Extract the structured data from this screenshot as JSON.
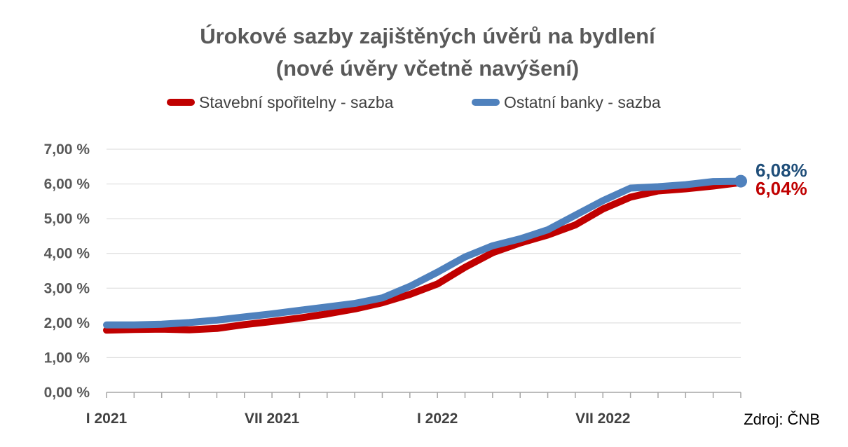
{
  "chart_data": {
    "type": "line",
    "title_line1": "Úrokové sazby zajištěných úvěrů na bydlení",
    "title_line2": "(nové úvěry včetně navýšení)",
    "legend_position": "top",
    "ylim": [
      0,
      7
    ],
    "yticks": [
      "0,00 %",
      "1,00 %",
      "2,00 %",
      "3,00 %",
      "4,00 %",
      "5,00 %",
      "6,00 %",
      "7,00 %"
    ],
    "grid": "horizontal",
    "x": [
      "I 2021",
      "II 2021",
      "III 2021",
      "IV 2021",
      "V 2021",
      "VI 2021",
      "VII 2021",
      "VIII 2021",
      "IX 2021",
      "X 2021",
      "XI 2021",
      "XII 2021",
      "I 2022",
      "II 2022",
      "III 2022",
      "IV 2022",
      "V 2022",
      "VI 2022",
      "VII 2022",
      "VIII 2022",
      "IX 2022",
      "X 2022",
      "XI 2022",
      "XII 2022"
    ],
    "xtick_labels": [
      {
        "index": 0,
        "label": "I 2021"
      },
      {
        "index": 6,
        "label": "VII 2021"
      },
      {
        "index": 12,
        "label": "I 2022"
      },
      {
        "index": 18,
        "label": "VII 2022"
      }
    ],
    "series": [
      {
        "name": "Stavební spořitelny - sazba",
        "color": "#c00000",
        "values": [
          1.79,
          1.81,
          1.82,
          1.8,
          1.84,
          1.95,
          2.04,
          2.14,
          2.26,
          2.4,
          2.58,
          2.82,
          3.12,
          3.6,
          4.02,
          4.3,
          4.53,
          4.82,
          5.28,
          5.62,
          5.8,
          5.86,
          5.94,
          6.04
        ],
        "end_label": "6,04%"
      },
      {
        "name": "Ostatní banky - sazba",
        "color": "#4f81bd",
        "values": [
          1.94,
          1.94,
          1.96,
          2.01,
          2.08,
          2.17,
          2.26,
          2.36,
          2.46,
          2.56,
          2.72,
          3.05,
          3.46,
          3.9,
          4.22,
          4.42,
          4.68,
          5.1,
          5.52,
          5.88,
          5.92,
          5.98,
          6.07,
          6.08
        ],
        "end_label": "6,08%",
        "end_label_color": "#1f4e79"
      }
    ]
  },
  "source": "Zdroj: ČNB"
}
